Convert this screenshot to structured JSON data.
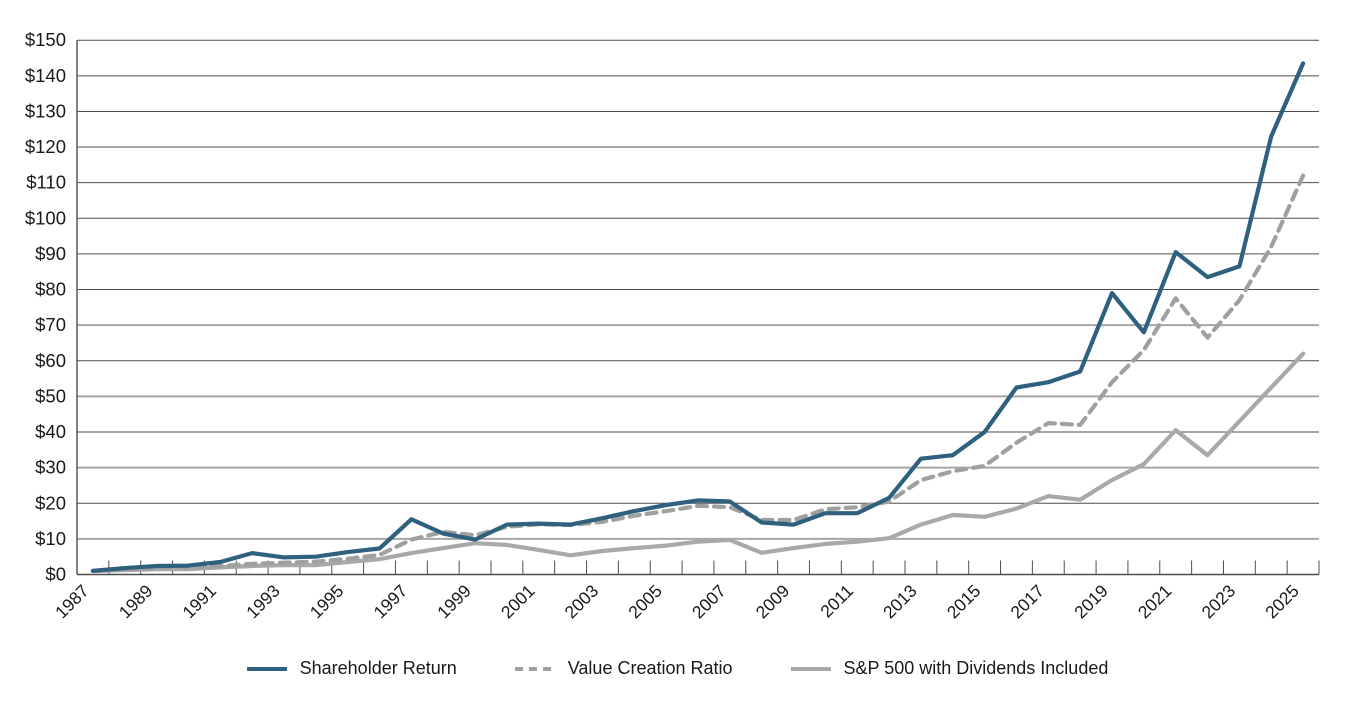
{
  "chart_data": {
    "type": "line",
    "title": "",
    "x": [
      1987,
      1988,
      1989,
      1990,
      1991,
      1992,
      1993,
      1994,
      1995,
      1996,
      1997,
      1998,
      1999,
      2000,
      2001,
      2002,
      2003,
      2004,
      2005,
      2006,
      2007,
      2008,
      2009,
      2010,
      2011,
      2012,
      2013,
      2014,
      2015,
      2016,
      2017,
      2018,
      2019,
      2020,
      2021,
      2022,
      2023,
      2024,
      2025
    ],
    "x_tick_labels": [
      "1987",
      "1989",
      "1991",
      "1993",
      "1995",
      "1997",
      "1999",
      "2001",
      "2003",
      "2005",
      "2007",
      "2009",
      "2011",
      "2013",
      "2015",
      "2017",
      "2019",
      "2021",
      "2023",
      "2025"
    ],
    "series": [
      {
        "name": "Shareholder Return",
        "color": "#2F617F",
        "style": "solid",
        "values": [
          1.0,
          1.8,
          2.4,
          2.5,
          3.5,
          6.0,
          4.8,
          5.0,
          6.3,
          7.3,
          15.5,
          11.5,
          9.8,
          14.0,
          14.3,
          14.0,
          15.8,
          17.8,
          19.5,
          20.8,
          20.5,
          14.6,
          14.0,
          17.2,
          17.2,
          21.5,
          32.5,
          33.5,
          40.0,
          52.5,
          54.0,
          57.0,
          79.0,
          68.0,
          90.5,
          83.5,
          86.5,
          123.0,
          143.5
        ]
      },
      {
        "name": "Value Creation Ratio",
        "color": "#A0A0A0",
        "style": "dashed",
        "values": [
          1.0,
          1.4,
          1.8,
          2.0,
          2.4,
          3.0,
          3.3,
          3.6,
          4.4,
          5.5,
          9.8,
          12.0,
          11.0,
          13.4,
          14.1,
          13.9,
          14.8,
          16.5,
          17.8,
          19.3,
          18.9,
          15.3,
          15.3,
          18.3,
          18.9,
          20.5,
          26.5,
          29.0,
          30.5,
          37.0,
          42.5,
          42.0,
          54.0,
          63.0,
          77.5,
          66.5,
          77.0,
          92.0,
          112.0
        ]
      },
      {
        "name": "S&P 500 with Dividends Included",
        "color": "#A9A9A9",
        "style": "solid",
        "values": [
          1.0,
          1.2,
          1.5,
          1.5,
          2.0,
          2.4,
          2.6,
          2.6,
          3.5,
          4.3,
          6.0,
          7.4,
          8.8,
          8.3,
          6.9,
          5.4,
          6.6,
          7.4,
          8.1,
          9.2,
          9.7,
          6.1,
          7.4,
          8.6,
          9.2,
          10.2,
          14.0,
          16.7,
          16.2,
          18.5,
          22.0,
          21.0,
          26.5,
          31.0,
          40.5,
          33.5,
          43.0,
          52.5,
          62.0
        ]
      }
    ],
    "ylim": [
      0,
      150
    ],
    "ytick_step": 10,
    "y_tick_prefix": "$",
    "y_tick_labels": [
      "$0",
      "$10",
      "$20",
      "$30",
      "$40",
      "$50",
      "$60",
      "$70",
      "$80",
      "$90",
      "$100",
      "$110",
      "$120",
      "$130",
      "$140",
      "$150"
    ],
    "grid": "horizontal",
    "gray_emphasized_gridlines": [
      10,
      30,
      50,
      70
    ],
    "legend_position": "bottom-center"
  },
  "colors": {
    "gridline_dark": "#4d4d4d",
    "gridline_gray": "#a6a6a6",
    "axis": "#4d4d4d",
    "text": "#1a1a1a"
  }
}
